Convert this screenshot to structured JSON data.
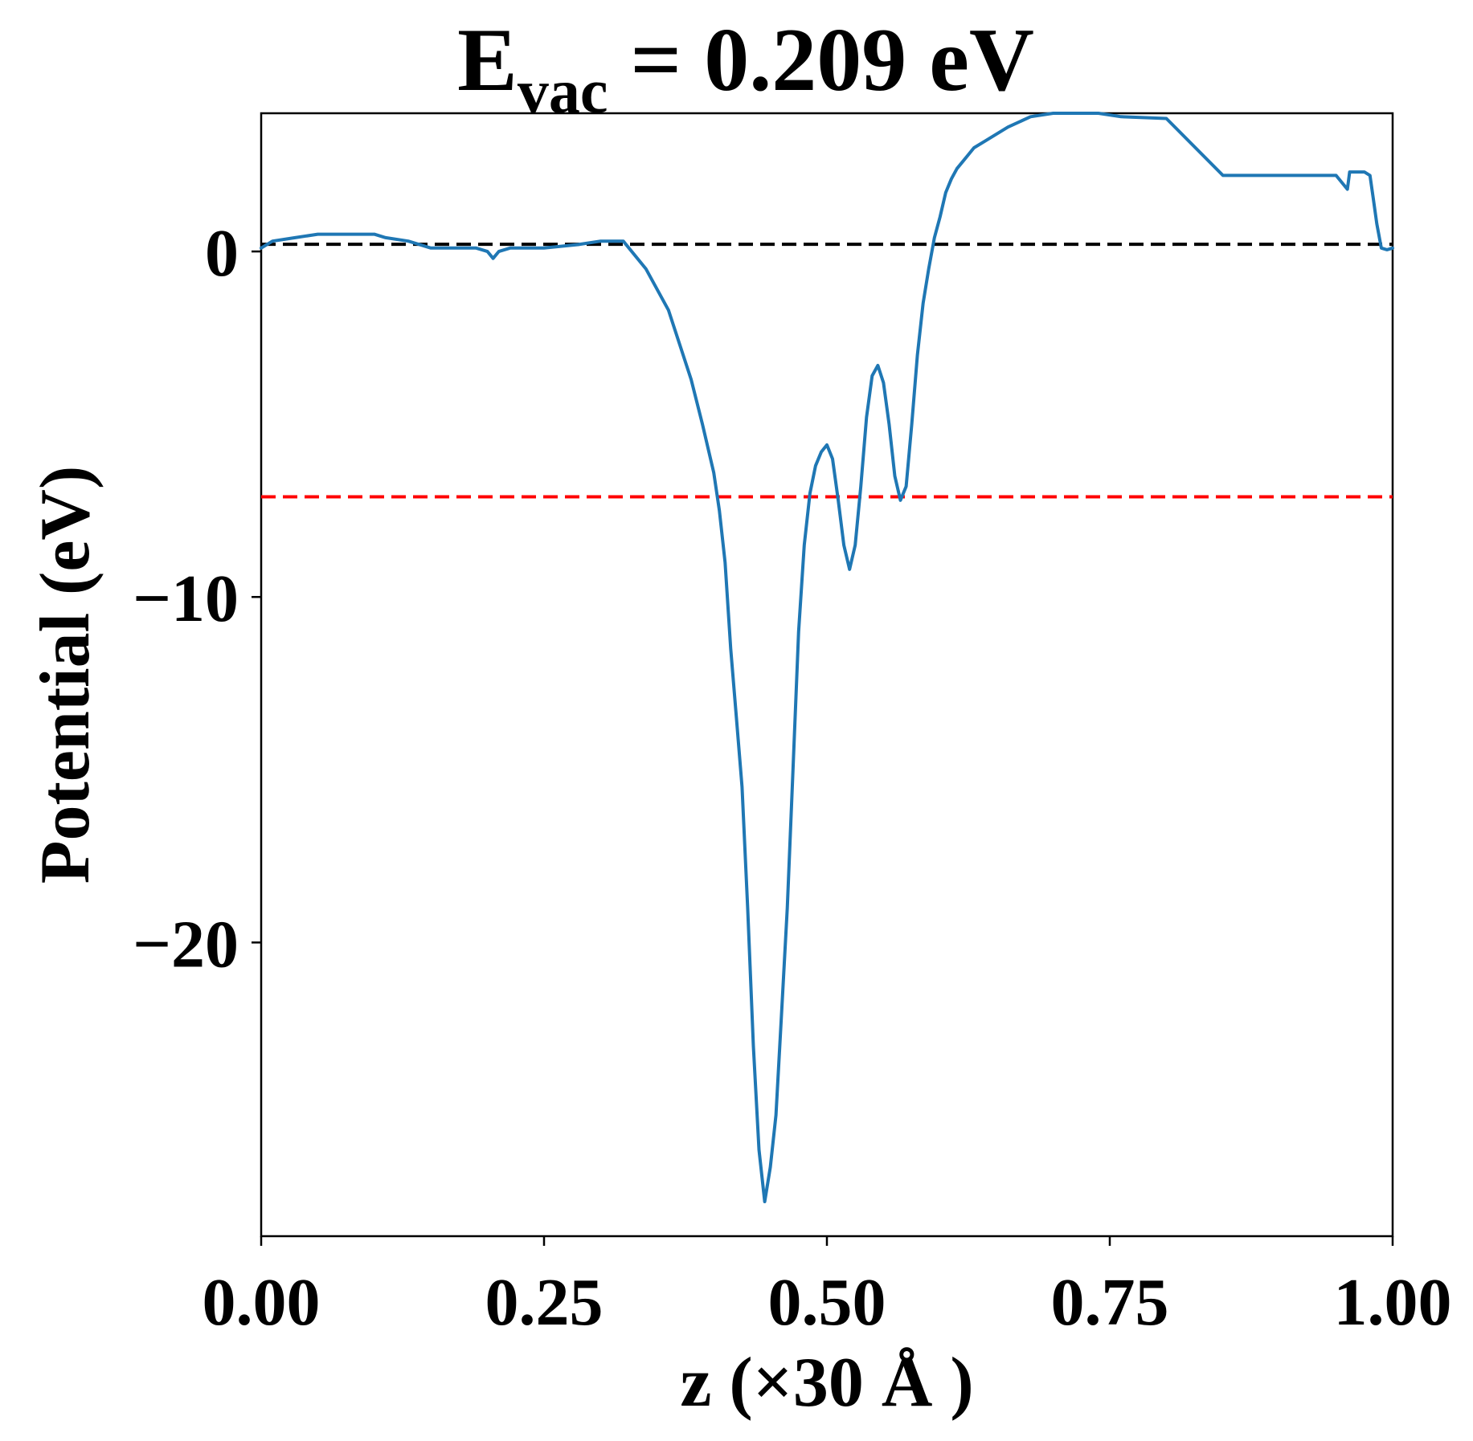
{
  "chart_data": {
    "type": "line",
    "title": {
      "main": "E",
      "subscript": "vac",
      "rest": " = 0.209 eV"
    },
    "xlabel": "z (×30 Å )",
    "ylabel": "Potential (eV)",
    "xlim": [
      0.0,
      1.0
    ],
    "ylim": [
      -28.5,
      4.0
    ],
    "xticks": [
      0.0,
      0.25,
      0.5,
      0.75,
      1.0
    ],
    "xtick_labels": [
      "0.00",
      "0.25",
      "0.50",
      "0.75",
      "1.00"
    ],
    "yticks": [
      0,
      -10,
      -20
    ],
    "ytick_labels": [
      "0",
      "−10",
      "−20"
    ],
    "grid": false,
    "legend": "none",
    "series": [
      {
        "color": "#1f77b4",
        "x": [
          0.0,
          0.01,
          0.03,
          0.05,
          0.06,
          0.08,
          0.1,
          0.11,
          0.13,
          0.15,
          0.17,
          0.19,
          0.2,
          0.205,
          0.21,
          0.22,
          0.25,
          0.28,
          0.3,
          0.32,
          0.34,
          0.36,
          0.38,
          0.39,
          0.4,
          0.405,
          0.41,
          0.415,
          0.42,
          0.425,
          0.43,
          0.435,
          0.44,
          0.445,
          0.45,
          0.455,
          0.46,
          0.465,
          0.47,
          0.475,
          0.48,
          0.485,
          0.49,
          0.495,
          0.5,
          0.505,
          0.51,
          0.515,
          0.52,
          0.525,
          0.53,
          0.535,
          0.54,
          0.545,
          0.55,
          0.555,
          0.56,
          0.565,
          0.57,
          0.575,
          0.58,
          0.585,
          0.59,
          0.595,
          0.6,
          0.605,
          0.61,
          0.615,
          0.62,
          0.625,
          0.63,
          0.64,
          0.65,
          0.66,
          0.68,
          0.7,
          0.72,
          0.74,
          0.76,
          0.8,
          0.85,
          0.88,
          0.9,
          0.92,
          0.95,
          0.96,
          0.962,
          0.965,
          0.97,
          0.975,
          0.98,
          0.983,
          0.986,
          0.99,
          0.995,
          1.0
        ],
        "y": [
          0.1,
          0.3,
          0.4,
          0.5,
          0.5,
          0.5,
          0.5,
          0.4,
          0.3,
          0.1,
          0.1,
          0.1,
          0.0,
          -0.2,
          0.0,
          0.1,
          0.1,
          0.2,
          0.3,
          0.3,
          -0.5,
          -1.7,
          -3.7,
          -5.0,
          -6.4,
          -7.5,
          -9.0,
          -11.5,
          -13.5,
          -15.5,
          -19.0,
          -23.0,
          -26.0,
          -27.5,
          -26.5,
          -25.0,
          -22.0,
          -19.0,
          -15.0,
          -11.0,
          -8.5,
          -7.0,
          -6.2,
          -5.8,
          -5.6,
          -6.0,
          -7.2,
          -8.5,
          -9.2,
          -8.5,
          -6.8,
          -4.8,
          -3.6,
          -3.3,
          -3.8,
          -5.0,
          -6.5,
          -7.2,
          -6.8,
          -5.0,
          -3.0,
          -1.5,
          -0.5,
          0.4,
          1.0,
          1.7,
          2.1,
          2.4,
          2.6,
          2.8,
          3.0,
          3.2,
          3.4,
          3.6,
          3.9,
          4.0,
          4.0,
          4.0,
          3.9,
          3.85,
          2.2,
          2.2,
          2.2,
          2.2,
          2.2,
          1.8,
          2.3,
          2.3,
          2.3,
          2.3,
          2.2,
          1.5,
          0.8,
          0.1,
          0.05,
          0.1
        ]
      }
    ],
    "reference_lines": [
      {
        "y": 0.209,
        "color": "#000000",
        "style": "dashed"
      },
      {
        "y": -7.1,
        "color": "#ff0000",
        "style": "dashed"
      }
    ]
  }
}
